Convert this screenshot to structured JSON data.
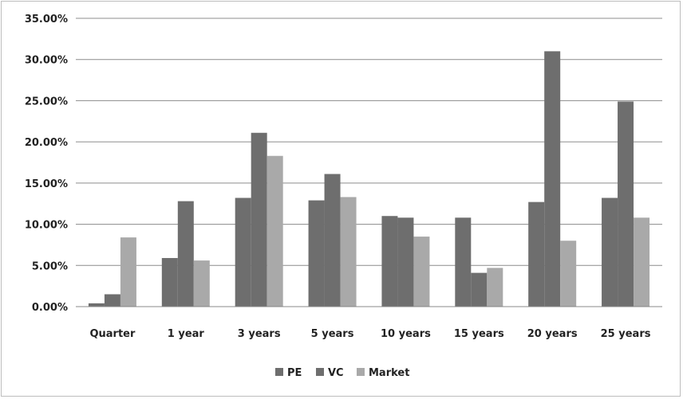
{
  "chart_data": {
    "type": "bar",
    "categories": [
      "Quarter",
      "1 year",
      "3 years",
      "5 years",
      "10 years",
      "15 years",
      "20 years",
      "25 years"
    ],
    "series": [
      {
        "name": "PE",
        "color": "#6e6e6e",
        "values": [
          0.4,
          5.9,
          13.2,
          12.9,
          11.0,
          10.8,
          12.7,
          13.2
        ]
      },
      {
        "name": "VC",
        "color": "#6e6e6e",
        "values": [
          1.5,
          12.8,
          21.1,
          16.1,
          10.8,
          4.1,
          31.0,
          24.9
        ]
      },
      {
        "name": "Market",
        "color": "#a9a9a9",
        "values": [
          8.4,
          5.6,
          18.3,
          13.3,
          8.5,
          4.7,
          8.0,
          10.8
        ]
      }
    ],
    "yticks": [
      "0.00%",
      "5.00%",
      "10.00%",
      "15.00%",
      "20.00%",
      "25.00%",
      "30.00%",
      "35.00%"
    ],
    "ylim": [
      0,
      35
    ],
    "grid": true,
    "legend_position": "bottom"
  }
}
